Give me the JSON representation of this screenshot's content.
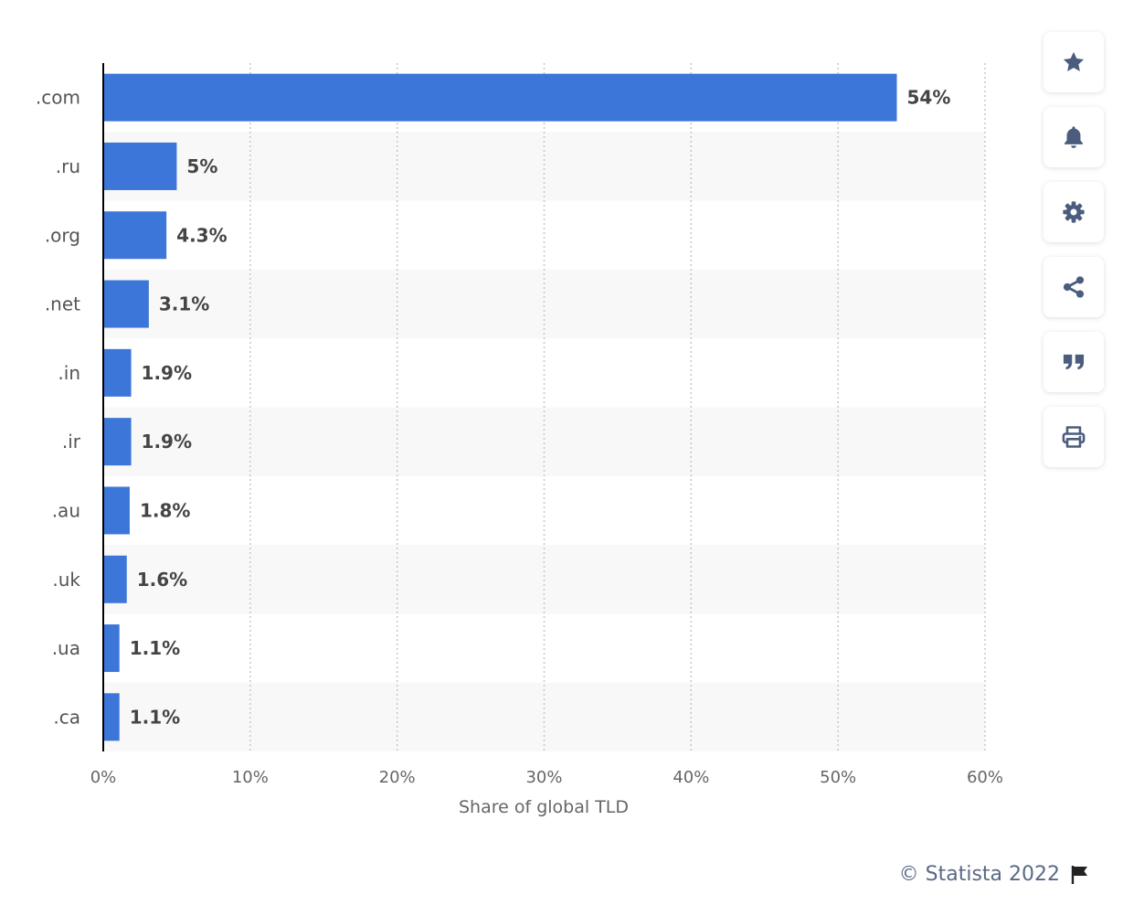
{
  "chart_data": {
    "type": "bar",
    "orientation": "horizontal",
    "categories": [
      ".com",
      ".ru",
      ".org",
      ".net",
      ".in",
      ".ir",
      ".au",
      ".uk",
      ".ua",
      ".ca"
    ],
    "values": [
      54,
      5,
      4.3,
      3.1,
      1.9,
      1.9,
      1.8,
      1.6,
      1.1,
      1.1
    ],
    "value_labels": [
      "54%",
      "5%",
      "4.3%",
      "3.1%",
      "1.9%",
      "1.9%",
      "1.8%",
      "1.6%",
      "1.1%",
      "1.1%"
    ],
    "xlabel": "Share of global TLD",
    "xlim": [
      0,
      60
    ],
    "x_ticks": [
      "0%",
      "10%",
      "20%",
      "30%",
      "40%",
      "50%",
      "60%"
    ],
    "grid": true,
    "bar_color": "#3b76d8",
    "stripe_color": "#f8f8f8"
  },
  "toolbar": {
    "buttons": [
      {
        "name": "favorite-button",
        "icon": "star-icon"
      },
      {
        "name": "notification-button",
        "icon": "bell-icon"
      },
      {
        "name": "settings-button",
        "icon": "gear-icon"
      },
      {
        "name": "share-button",
        "icon": "share-icon"
      },
      {
        "name": "cite-button",
        "icon": "quote-icon"
      },
      {
        "name": "print-button",
        "icon": "print-icon"
      }
    ],
    "icon_color": "#4a5d7e"
  },
  "footer": {
    "credit": "© Statista 2022",
    "flag_icon": "flag-icon"
  }
}
